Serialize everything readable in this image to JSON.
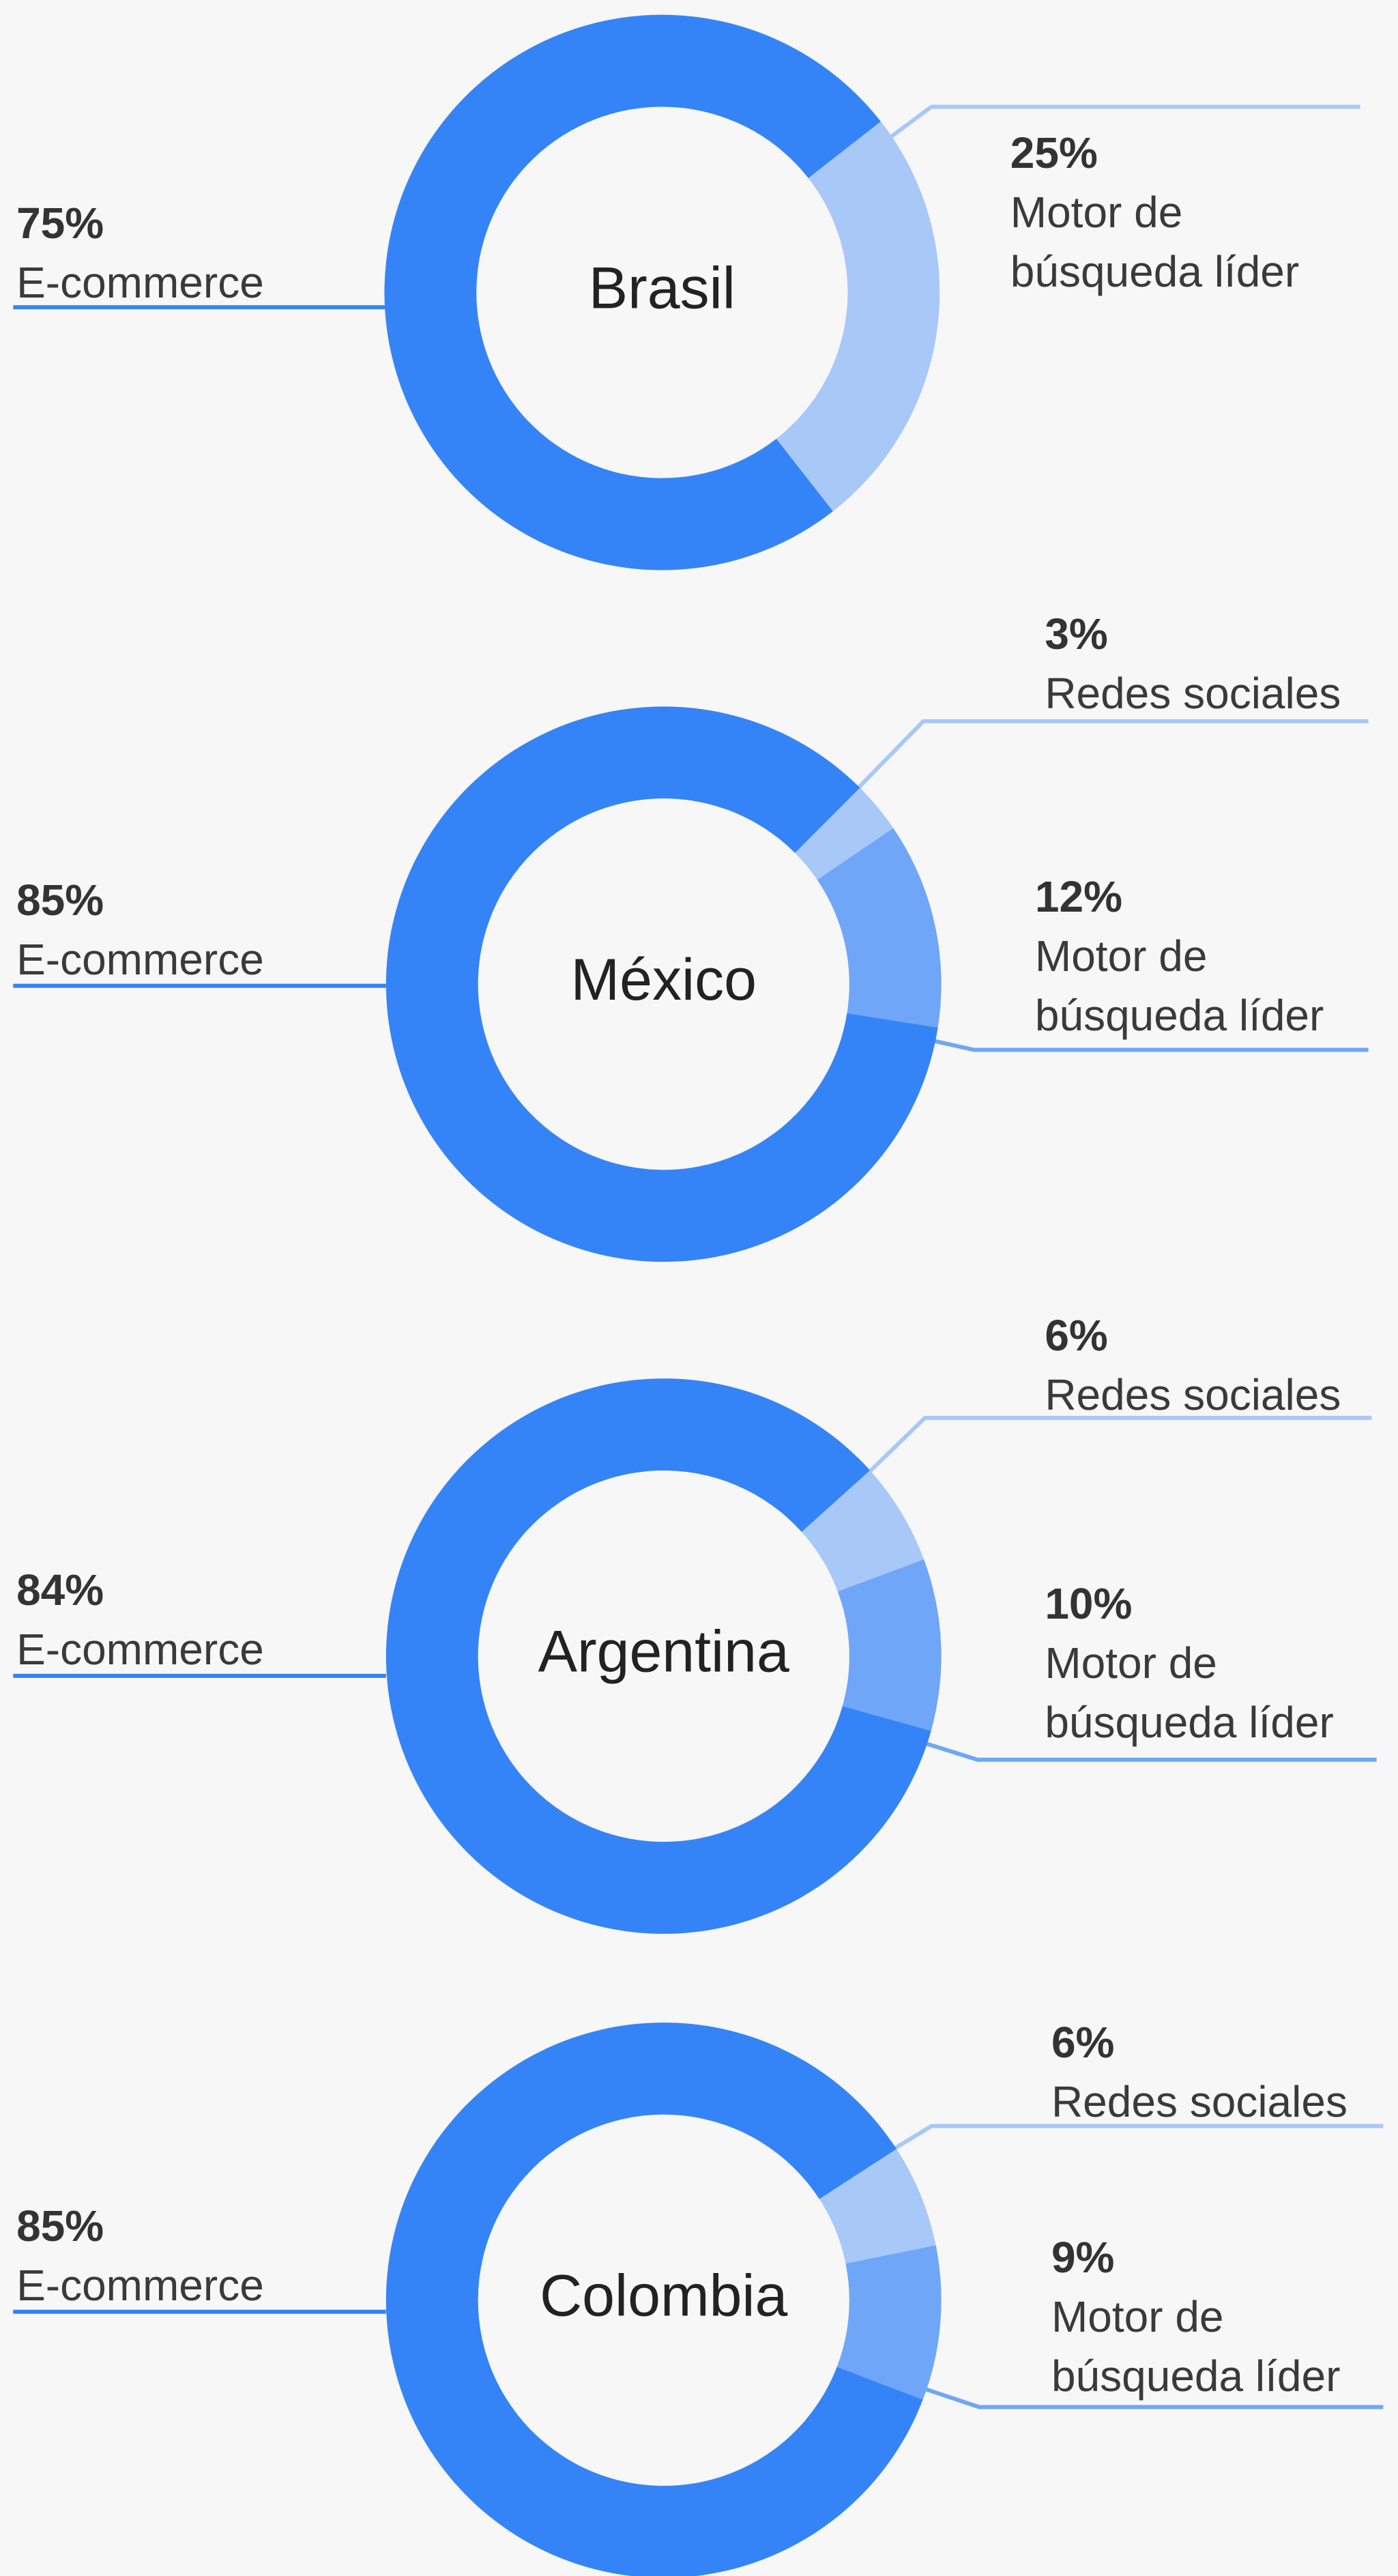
{
  "chart_data": [
    {
      "type": "pie",
      "title": "Brasil",
      "categories": [
        "Motor de\nbúsqueda líder",
        "E-commerce"
      ],
      "values": [
        25,
        75
      ],
      "value_labels": [
        "25%",
        "75%"
      ],
      "colors": [
        "#a8c8f8",
        "#3584f7"
      ]
    },
    {
      "type": "pie",
      "title": "México",
      "categories": [
        "Redes sociales",
        "Motor de\nbúsqueda líder",
        "E-commerce"
      ],
      "values": [
        3,
        12,
        85
      ],
      "value_labels": [
        "3%",
        "12%",
        "85%"
      ],
      "colors": [
        "#a8c8f8",
        "#6fa6f8",
        "#3584f7"
      ]
    },
    {
      "type": "pie",
      "title": "Argentina",
      "categories": [
        "Redes sociales",
        "Motor de\nbúsqueda líder",
        "E-commerce"
      ],
      "values": [
        6,
        10,
        84
      ],
      "value_labels": [
        "6%",
        "10%",
        "84%"
      ],
      "colors": [
        "#a8c8f8",
        "#6fa6f8",
        "#3584f7"
      ]
    },
    {
      "type": "pie",
      "title": "Colombia",
      "categories": [
        "Redes sociales",
        "Motor de\nbúsqueda líder",
        "E-commerce"
      ],
      "values": [
        6,
        9,
        85
      ],
      "value_labels": [
        "6%",
        "9%",
        "85%"
      ],
      "colors": [
        "#a8c8f8",
        "#6fa6f8",
        "#3584f7"
      ]
    }
  ]
}
